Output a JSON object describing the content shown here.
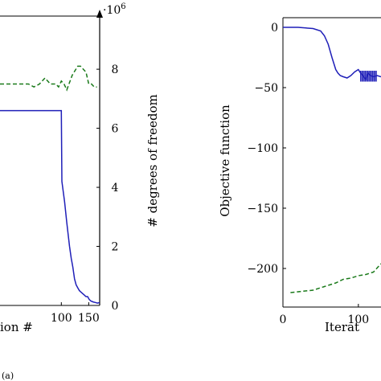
{
  "caption": "(a)",
  "chart_data": [
    {
      "type": "line",
      "xlabel": "ion #",
      "ylabel_right": "# degrees of freedom",
      "y_exponent_label": "·10^6",
      "xlim": [
        -12,
        170
      ],
      "ylim_right": [
        0,
        9.8
      ],
      "x_ticks": [
        100,
        150
      ],
      "x_tick_labels": [
        "100",
        "150"
      ],
      "y_right_ticks": [
        0,
        2,
        4,
        6,
        8
      ],
      "y_right_tick_labels": [
        "0",
        "2",
        "4",
        "6",
        "8"
      ],
      "grid": false,
      "series": [
        {
          "style": "solid",
          "color": "#1f1fb8",
          "x": [
            -12,
            100,
            101,
            106,
            110,
            115,
            118,
            121,
            124,
            127,
            130,
            133,
            136,
            139,
            142,
            145,
            148,
            151,
            154,
            158,
            162,
            166,
            170
          ],
          "y": [
            6.6,
            6.6,
            4.2,
            3.5,
            2.8,
            2.0,
            1.6,
            1.3,
            0.9,
            0.7,
            0.6,
            0.5,
            0.45,
            0.4,
            0.35,
            0.3,
            0.3,
            0.2,
            0.15,
            0.12,
            0.1,
            0.08,
            0.1
          ]
        },
        {
          "style": "dashed",
          "color": "#1a7a1a",
          "x": [
            -12,
            40,
            50,
            60,
            70,
            80,
            90,
            95,
            100,
            105,
            110,
            120,
            130,
            135,
            140,
            145,
            150,
            155,
            160,
            165
          ],
          "y": [
            7.5,
            7.5,
            7.4,
            7.5,
            7.7,
            7.5,
            7.5,
            7.4,
            7.6,
            7.5,
            7.3,
            7.8,
            8.1,
            8.1,
            8.0,
            7.9,
            7.5,
            7.5,
            7.4,
            7.4
          ]
        }
      ]
    },
    {
      "type": "line",
      "xlabel": "Iterat",
      "ylabel": "Objective function",
      "xlim": [
        0,
        130
      ],
      "ylim": [
        -232,
        8
      ],
      "x_ticks": [
        0,
        100
      ],
      "x_tick_labels": [
        "0",
        "100"
      ],
      "y_ticks": [
        0,
        -50,
        -100,
        -150,
        -200
      ],
      "y_tick_labels": [
        "0",
        "−50",
        "−100",
        "−150",
        "−200"
      ],
      "grid": false,
      "series": [
        {
          "style": "solid",
          "color": "#1f1fb8",
          "x": [
            0,
            20,
            40,
            50,
            55,
            60,
            65,
            70,
            73,
            76,
            80,
            85,
            90,
            95,
            100,
            103,
            106,
            108,
            110,
            113,
            116,
            120,
            125,
            130
          ],
          "y": [
            0,
            0,
            -1,
            -3,
            -7,
            -14,
            -25,
            -35,
            -38,
            -40,
            -41,
            -42,
            -40,
            -37,
            -35,
            -38,
            -40,
            -42,
            -43,
            -38,
            -40,
            -41,
            -40,
            -41
          ]
        },
        {
          "style": "dashed",
          "color": "#1a7a1a",
          "x": [
            10,
            40,
            50,
            55,
            60,
            70,
            80,
            90,
            100,
            110,
            120,
            130
          ],
          "y": [
            -220,
            -218,
            -216,
            -215,
            -214,
            -212,
            -209,
            -208,
            -206,
            -205,
            -203,
            -196
          ]
        }
      ]
    }
  ]
}
